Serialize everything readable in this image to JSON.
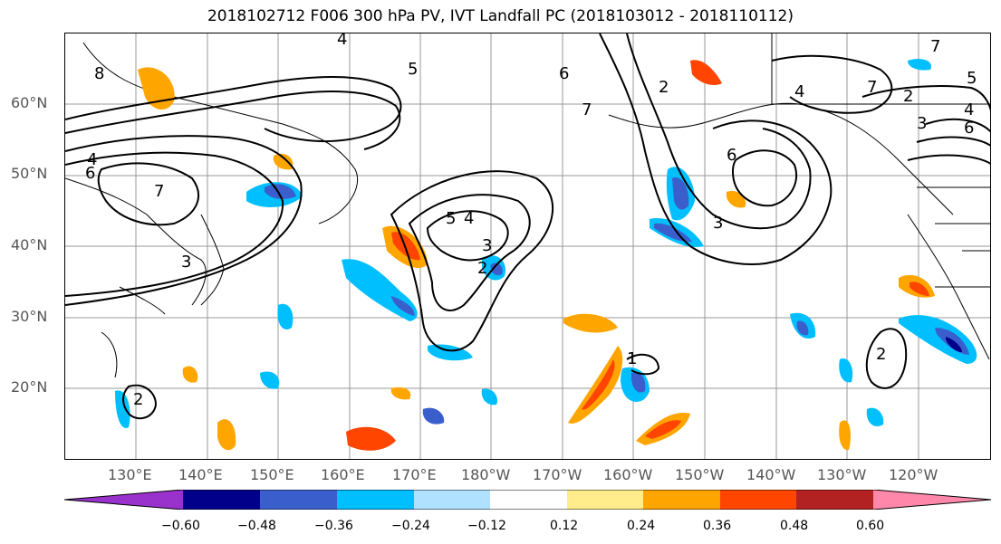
{
  "title": "2018102712 F006 300 hPa PV, IVT Landfall PC (2018103012 - 2018110112)",
  "lat_labels": [
    "60°N",
    "50°N",
    "40°N",
    "30°N",
    "20°N"
  ],
  "lon_labels": [
    "130°E",
    "140°E",
    "150°E",
    "160°E",
    "170°E",
    "180°W",
    "170°W",
    "160°W",
    "150°W",
    "140°W",
    "130°W",
    "120°W"
  ],
  "colorbar": {
    "ticks": [
      "−0.60",
      "−0.48",
      "−0.36",
      "−0.24",
      "−0.12",
      "0.12",
      "0.24",
      "0.36",
      "0.48",
      "0.60"
    ],
    "colors": [
      "#9932CC",
      "#00008B",
      "#3A5FCD",
      "#00BFFF",
      "#B0E2FF",
      "#FFFFFF",
      "#FFEC8B",
      "#FFA500",
      "#FF4500",
      "#B22222",
      "#FF88AA"
    ]
  },
  "contour_labels": [
    "8",
    "6",
    "4",
    "5",
    "3",
    "7",
    "4",
    "5",
    "6",
    "7",
    "2",
    "3",
    "4",
    "6",
    "2",
    "3",
    "4",
    "2",
    "7",
    "6",
    "5",
    "7",
    "2",
    "3",
    "4",
    "1",
    "2"
  ]
}
